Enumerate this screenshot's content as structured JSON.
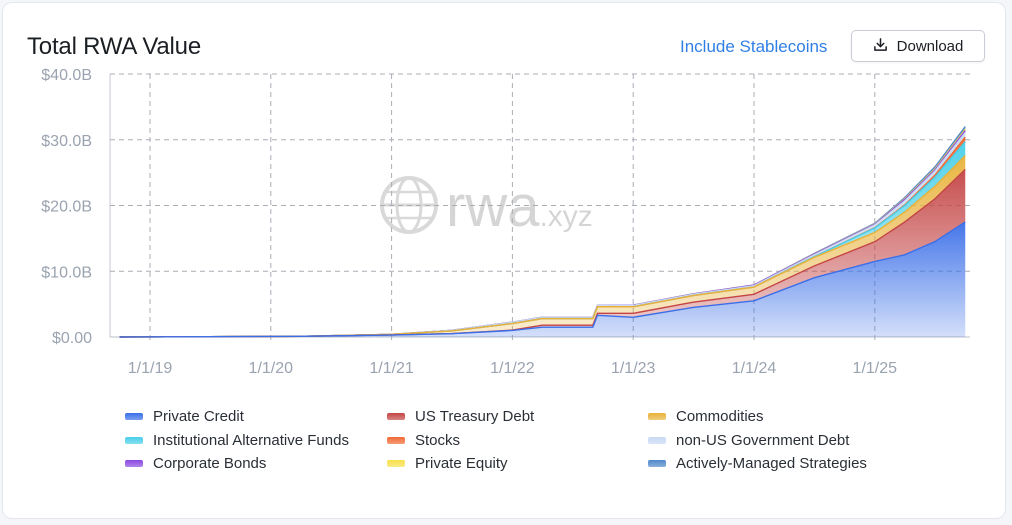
{
  "header": {
    "title": "Total RWA Value",
    "stablecoins_label": "Include Stablecoins",
    "download_label": "Download"
  },
  "watermark": "rwa.xyz",
  "colors": {
    "private_credit": "#3b6fe8",
    "us_treasury_debt": "#c44545",
    "commodities": "#e8b23a",
    "institutional_alt_funds": "#49cfe8",
    "stocks": "#f06a35",
    "non_us_gov_debt": "#c8d9f2",
    "corporate_bonds": "#8a48e0",
    "private_equity": "#f7e04a",
    "actively_managed": "#4f88c9"
  },
  "legend": [
    {
      "label": "Private Credit",
      "color": "#3b6fe8"
    },
    {
      "label": "US Treasury Debt",
      "color": "#c44545"
    },
    {
      "label": "Commodities",
      "color": "#e8b23a"
    },
    {
      "label": "Institutional Alternative Funds",
      "color": "#49cfe8"
    },
    {
      "label": "Stocks",
      "color": "#f06a35"
    },
    {
      "label": "non-US Government Debt",
      "color": "#c8d9f2"
    },
    {
      "label": "Corporate Bonds",
      "color": "#8a48e0"
    },
    {
      "label": "Private Equity",
      "color": "#f7e04a"
    },
    {
      "label": "Actively-Managed Strategies",
      "color": "#4f88c9"
    }
  ],
  "chart_data": {
    "type": "area",
    "stacked": true,
    "x_ticks": [
      "1/1/19",
      "1/1/20",
      "1/1/21",
      "1/1/22",
      "1/1/23",
      "1/1/24",
      "1/1/25"
    ],
    "y_ticks": [
      "$0.00",
      "$10.0B",
      "$20.0B",
      "$30.0B",
      "$40.0B"
    ],
    "ylim": [
      0,
      40
    ],
    "y_unit": "billions USD",
    "grid": true,
    "legend_position": "bottom",
    "x": [
      "2018-10-01",
      "2019-07-01",
      "2020-04-01",
      "2021-01-01",
      "2021-07-01",
      "2022-01-01",
      "2022-04-01",
      "2022-09-01",
      "2022-09-15",
      "2023-01-01",
      "2023-07-01",
      "2024-01-01",
      "2024-07-01",
      "2025-01-01",
      "2025-04-01",
      "2025-07-01",
      "2025-10-01"
    ],
    "series": [
      {
        "name": "Private Credit",
        "values": [
          0,
          0.05,
          0.1,
          0.3,
          0.5,
          1.0,
          1.5,
          1.5,
          3.3,
          3.0,
          4.5,
          5.5,
          9.0,
          11.5,
          12.5,
          14.5,
          17.5
        ]
      },
      {
        "name": "US Treasury Debt",
        "values": [
          0,
          0,
          0,
          0.01,
          0.02,
          0.05,
          0.3,
          0.3,
          0.3,
          0.6,
          0.8,
          1.0,
          1.8,
          3.0,
          5.0,
          6.5,
          8.0
        ]
      },
      {
        "name": "Commodities",
        "values": [
          0,
          0,
          0,
          0.1,
          0.4,
          1.0,
          1.0,
          1.0,
          1.0,
          1.0,
          1.0,
          1.1,
          1.3,
          1.4,
          1.5,
          1.9,
          2.1
        ]
      },
      {
        "name": "Institutional Alternative Funds",
        "values": [
          0,
          0,
          0,
          0,
          0,
          0,
          0,
          0,
          0,
          0,
          0,
          0,
          0.1,
          0.7,
          1.0,
          1.4,
          2.1
        ]
      },
      {
        "name": "Stocks",
        "values": [
          0,
          0,
          0,
          0,
          0,
          0,
          0,
          0,
          0,
          0,
          0,
          0,
          0,
          0.05,
          0.1,
          0.3,
          0.7
        ]
      },
      {
        "name": "non-US Government Debt",
        "values": [
          0,
          0,
          0,
          0,
          0.1,
          0.2,
          0.2,
          0.2,
          0.2,
          0.2,
          0.2,
          0.2,
          0.3,
          0.4,
          0.6,
          0.6,
          0.7
        ]
      },
      {
        "name": "Corporate Bonds",
        "values": [
          0,
          0,
          0,
          0,
          0,
          0.01,
          0.02,
          0.02,
          0.02,
          0.05,
          0.05,
          0.1,
          0.1,
          0.1,
          0.2,
          0.2,
          0.3
        ]
      },
      {
        "name": "Private Equity",
        "values": [
          0,
          0,
          0,
          0,
          0,
          0,
          0,
          0,
          0,
          0,
          0,
          0,
          0.05,
          0.05,
          0.1,
          0.15,
          0.2
        ]
      },
      {
        "name": "Actively-Managed Strategies",
        "values": [
          0,
          0,
          0,
          0,
          0,
          0,
          0,
          0,
          0,
          0,
          0,
          0,
          0.05,
          0.1,
          0.2,
          0.3,
          0.4
        ]
      }
    ]
  }
}
